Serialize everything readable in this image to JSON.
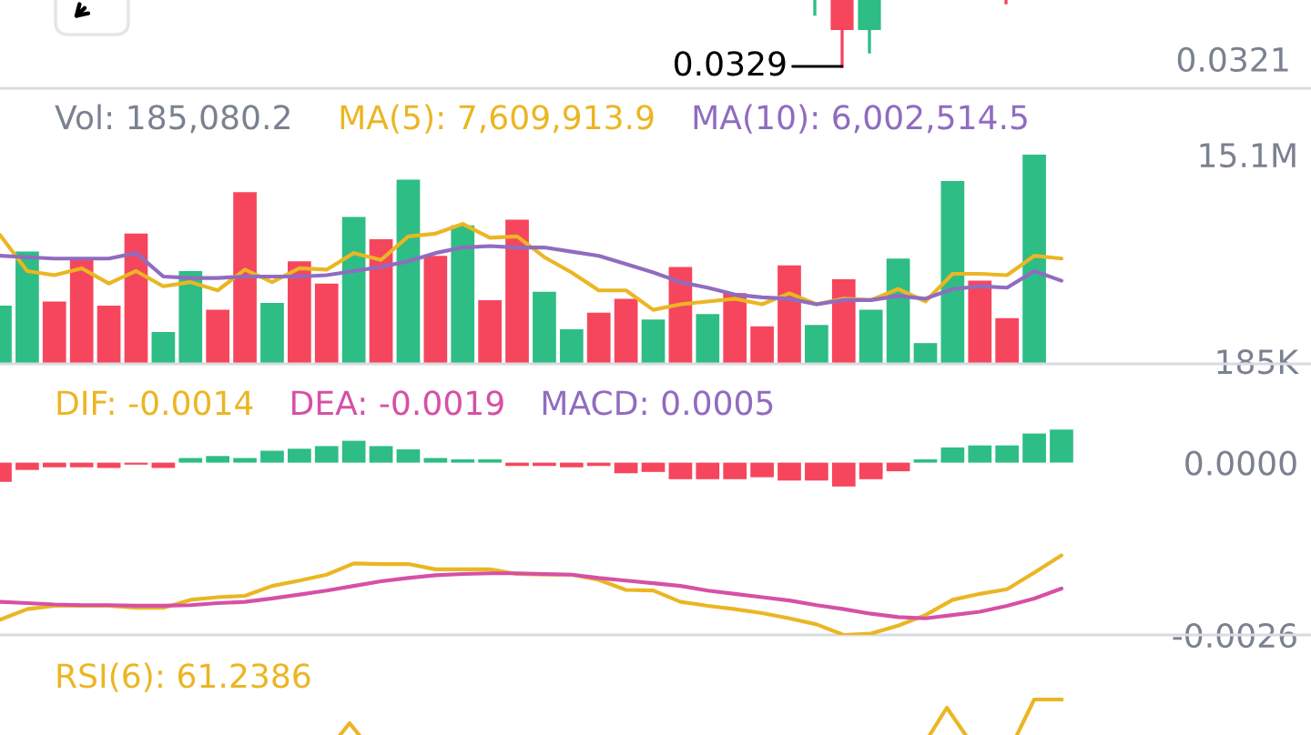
{
  "chart_data": [
    {
      "type": "other",
      "annotations": [
        "0.0329",
        "0.0321"
      ]
    },
    {
      "type": "bar",
      "title": "Vol: 185,080.2",
      "categories": [
        null,
        null,
        null,
        null,
        null,
        null,
        null,
        null,
        null,
        null,
        null,
        null,
        null,
        null,
        null,
        null,
        null,
        null,
        null,
        null,
        null,
        null,
        null,
        null,
        null,
        null,
        null,
        null,
        null,
        null,
        null,
        null,
        null,
        null,
        null,
        null,
        null,
        null,
        null,
        null
      ],
      "series": [
        {
          "colors": [
            "#2ebd85",
            "#2ebd85",
            "#f6465d",
            "#f6465d",
            "#f6465d",
            "#f6465d",
            "#2ebd85",
            "#2ebd85",
            "#f6465d",
            "#f6465d",
            "#2ebd85",
            "#f6465d",
            "#f6465d",
            "#2ebd85",
            "#f6465d",
            "#2ebd85",
            "#f6465d",
            "#2ebd85",
            "#f6465d",
            "#f6465d",
            "#2ebd85",
            "#2ebd85",
            "#f6465d",
            "#f6465d",
            "#2ebd85",
            "#f6465d",
            "#2ebd85",
            "#f6465d",
            "#f6465d",
            "#f6465d",
            "#2ebd85",
            "#f6465d",
            "#2ebd85",
            "#2ebd85",
            "#2ebd85",
            "#2ebd85",
            "#f6465d",
            "#f6465d",
            "#2ebd85",
            null
          ],
          "values": [
            4200000,
            8100000,
            4500000,
            7500000,
            4200000,
            9400000,
            2300000,
            6700000,
            3900000,
            12400000,
            4400000,
            7400000,
            5800000,
            10600000,
            9000000,
            13300000,
            7800000,
            10000000,
            4600000,
            10400000,
            5200000,
            2500000,
            3700000,
            4700000,
            3200000,
            7000000,
            3600000,
            5100000,
            2700000,
            7100000,
            2800000,
            6100000,
            3900000,
            7600000,
            1500000,
            13200000,
            6000000,
            3300000,
            15100000,
            null
          ]
        },
        {
          "name": "MA(5): 7,609,913.9",
          "type": "line",
          "color": "#ebb623",
          "values": [
            9300000,
            6700000,
            6400000,
            6900000,
            5800000,
            6700000,
            5600000,
            5900000,
            5300000,
            6800000,
            5900000,
            6900000,
            6800000,
            8000000,
            7500000,
            9200000,
            9400000,
            10100000,
            9100000,
            9200000,
            7700000,
            6600000,
            5300000,
            5300000,
            3900000,
            4300000,
            4500000,
            4700000,
            4300000,
            5100000,
            4300000,
            4700000,
            4600000,
            5400000,
            4500000,
            6500000,
            6500000,
            6400000,
            7800000,
            7600000
          ]
        },
        {
          "name": "MA(10): 6,002,514.5",
          "type": "line",
          "color": "#906cc0",
          "values": [
            7800000,
            7700000,
            7600000,
            7600000,
            7600000,
            8000000,
            6300000,
            6200000,
            6200000,
            6300000,
            6300000,
            6300000,
            6400000,
            6700000,
            7000000,
            7400000,
            8000000,
            8400000,
            8500000,
            8400000,
            8400000,
            8100000,
            7800000,
            7200000,
            6600000,
            5900000,
            5500000,
            5000000,
            4800000,
            4700000,
            4300000,
            4600000,
            4600000,
            4900000,
            4700000,
            5400000,
            5600000,
            5500000,
            6700000,
            6000000
          ]
        }
      ],
      "ylim": [
        0,
        15100000
      ],
      "yticks": [
        {
          "value": 15100000,
          "label": "15.1M"
        },
        {
          "value": 185000,
          "label": "185K"
        }
      ],
      "legend": "top",
      "tick_labels": "y"
    },
    {
      "type": "line",
      "categories": [
        null,
        null,
        null,
        null,
        null,
        null,
        null,
        null,
        null,
        null,
        null,
        null,
        null,
        null,
        null,
        null,
        null,
        null,
        null,
        null,
        null,
        null,
        null,
        null,
        null,
        null,
        null,
        null,
        null,
        null,
        null,
        null,
        null,
        null,
        null,
        null,
        null,
        null,
        null,
        null
      ],
      "series": [
        {
          "name": "DIF: -0.0014",
          "color": "#ebb623",
          "values": [
            -0.00237,
            -0.00221,
            -0.00216,
            -0.00216,
            -0.00216,
            -0.00219,
            -0.00219,
            -0.00207,
            -0.00203,
            -0.00201,
            -0.00186,
            -0.00178,
            -0.00169,
            -0.00152,
            -0.00153,
            -0.00153,
            -0.00161,
            -0.00161,
            -0.00161,
            -0.00168,
            -0.00169,
            -0.00169,
            -0.00177,
            -0.00192,
            -0.00193,
            -0.0021,
            -0.00216,
            -0.00221,
            -0.00227,
            -0.00235,
            -0.00244,
            -0.0026,
            -0.00258,
            -0.00246,
            -0.0023,
            -0.00207,
            -0.00198,
            -0.00191,
            -0.00166,
            -0.0014
          ]
        },
        {
          "name": "DEA: -0.0019",
          "color": "#d650a6",
          "values": [
            -0.0021,
            -0.00212,
            -0.00214,
            -0.00215,
            -0.00215,
            -0.00216,
            -0.00216,
            -0.00215,
            -0.00212,
            -0.0021,
            -0.00205,
            -0.00199,
            -0.00193,
            -0.00186,
            -0.00179,
            -0.00174,
            -0.0017,
            -0.00168,
            -0.00167,
            -0.00167,
            -0.00168,
            -0.00169,
            -0.00174,
            -0.00178,
            -0.00182,
            -0.00186,
            -0.00193,
            -0.00198,
            -0.00203,
            -0.00208,
            -0.00215,
            -0.00221,
            -0.00228,
            -0.00233,
            -0.00235,
            -0.0023,
            -0.00225,
            -0.00216,
            -0.00205,
            -0.0019
          ]
        },
        {
          "name": "MACD: 0.0005",
          "type": "bar",
          "color": "#906cc0",
          "colors": [
            "#f6465d",
            "#f6465d",
            "#f6465d",
            "#f6465d",
            "#f6465d",
            "#f6465d",
            "#f6465d",
            "#2ebd85",
            "#2ebd85",
            "#2ebd85",
            "#2ebd85",
            "#2ebd85",
            "#2ebd85",
            "#2ebd85",
            "#2ebd85",
            "#2ebd85",
            "#2ebd85",
            "#2ebd85",
            "#2ebd85",
            "#f6465d",
            "#f6465d",
            "#f6465d",
            "#f6465d",
            "#f6465d",
            "#f6465d",
            "#f6465d",
            "#f6465d",
            "#f6465d",
            "#f6465d",
            "#f6465d",
            "#f6465d",
            "#f6465d",
            "#f6465d",
            "#f6465d",
            "#2ebd85",
            "#2ebd85",
            "#2ebd85",
            "#2ebd85",
            "#2ebd85",
            "#2ebd85"
          ],
          "values": [
            -0.00029,
            -0.00011,
            -7e-05,
            -7e-05,
            -8e-05,
            -3e-05,
            -8e-05,
            7e-05,
            0.0001,
            7e-05,
            0.00018,
            0.00021,
            0.00025,
            0.00033,
            0.00025,
            0.0002,
            7e-05,
            5e-05,
            5e-05,
            -5e-05,
            -5e-05,
            -7e-05,
            -5e-05,
            -0.00016,
            -0.00014,
            -0.00025,
            -0.00025,
            -0.00025,
            -0.00022,
            -0.00027,
            -0.00027,
            -0.00036,
            -0.00025,
            -0.00013,
            5e-05,
            0.00023,
            0.00026,
            0.00026,
            0.00044,
            0.0005
          ]
        }
      ],
      "ylim": [
        -0.0026,
        0.00053
      ],
      "yticks": [
        {
          "value": 0,
          "label": "0.0000"
        },
        -0.0026
      ],
      "legend": "top left",
      "tick_labels": "y"
    },
    {
      "type": "other",
      "title": "RSI(6): 61.2386"
    }
  ]
}
